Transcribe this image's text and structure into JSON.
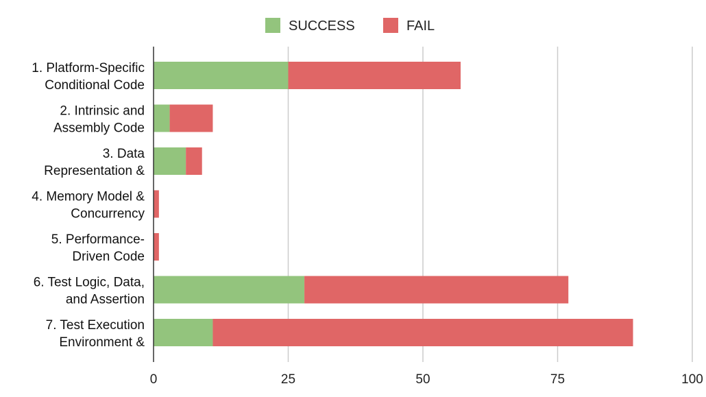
{
  "chart_data": {
    "type": "bar",
    "orientation": "horizontal",
    "stacked": true,
    "categories": [
      [
        "1. Platform-Specific",
        "Conditional Code"
      ],
      [
        "2. Intrinsic and",
        "Assembly Code"
      ],
      [
        "3. Data",
        "Representation &"
      ],
      [
        "4. Memory Model &",
        "Concurrency"
      ],
      [
        "5. Performance-",
        "Driven Code"
      ],
      [
        "6. Test Logic, Data,",
        "and Assertion"
      ],
      [
        "7. Test Execution",
        "Environment &"
      ]
    ],
    "series": [
      {
        "name": "SUCCESS",
        "color": "#93c47d",
        "values": [
          25,
          3,
          6,
          0,
          0,
          28,
          11
        ]
      },
      {
        "name": "FAIL",
        "color": "#e06666",
        "values": [
          32,
          8,
          3,
          1,
          1,
          49,
          78
        ]
      }
    ],
    "xlim": [
      0,
      100
    ],
    "xticks": [
      0,
      25,
      50,
      75,
      100
    ],
    "grid": true,
    "legend": "top-center",
    "title": "",
    "xlabel": "",
    "ylabel": ""
  }
}
